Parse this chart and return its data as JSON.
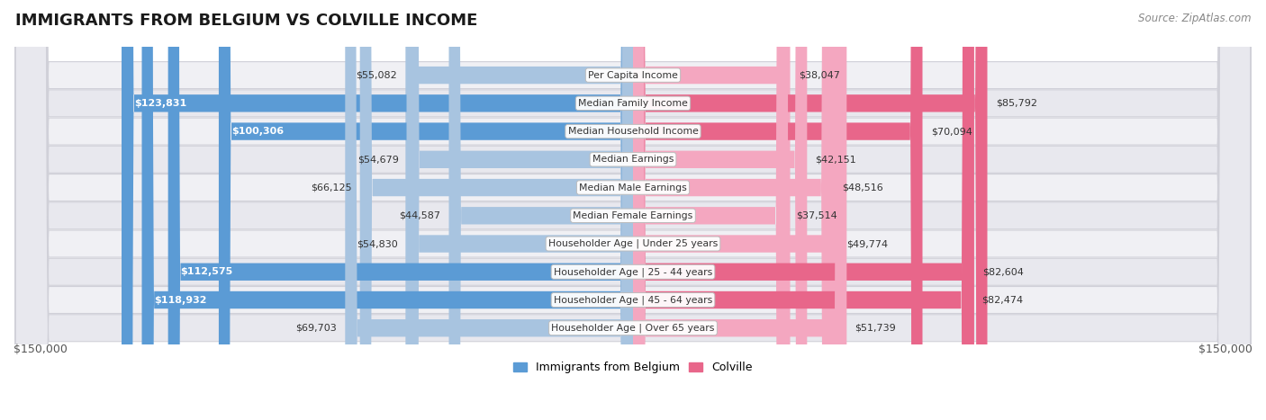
{
  "title": "IMMIGRANTS FROM BELGIUM VS COLVILLE INCOME",
  "source": "Source: ZipAtlas.com",
  "categories": [
    "Per Capita Income",
    "Median Family Income",
    "Median Household Income",
    "Median Earnings",
    "Median Male Earnings",
    "Median Female Earnings",
    "Householder Age | Under 25 years",
    "Householder Age | 25 - 44 years",
    "Householder Age | 45 - 64 years",
    "Householder Age | Over 65 years"
  ],
  "belgium_values": [
    55082,
    123831,
    100306,
    54679,
    66125,
    44587,
    54830,
    112575,
    118932,
    69703
  ],
  "colville_values": [
    38047,
    85792,
    70094,
    42151,
    48516,
    37514,
    49774,
    82604,
    82474,
    51739
  ],
  "belgium_labels": [
    "$55,082",
    "$123,831",
    "$100,306",
    "$54,679",
    "$66,125",
    "$44,587",
    "$54,830",
    "$112,575",
    "$118,932",
    "$69,703"
  ],
  "colville_labels": [
    "$38,047",
    "$85,792",
    "$70,094",
    "$42,151",
    "$48,516",
    "$37,514",
    "$49,774",
    "$82,604",
    "$82,474",
    "$51,739"
  ],
  "belgium_color_light": "#a8c4e0",
  "belgium_color_dark": "#5b9bd5",
  "colville_color_light": "#f4a7c0",
  "colville_color_dark": "#e8668a",
  "max_value": 150000,
  "legend_belgium": "Immigrants from Belgium",
  "legend_colville": "Colville",
  "xlabel_left": "$150,000",
  "xlabel_right": "$150,000",
  "belgium_dark_threshold": 80000,
  "colville_dark_threshold": 65000
}
